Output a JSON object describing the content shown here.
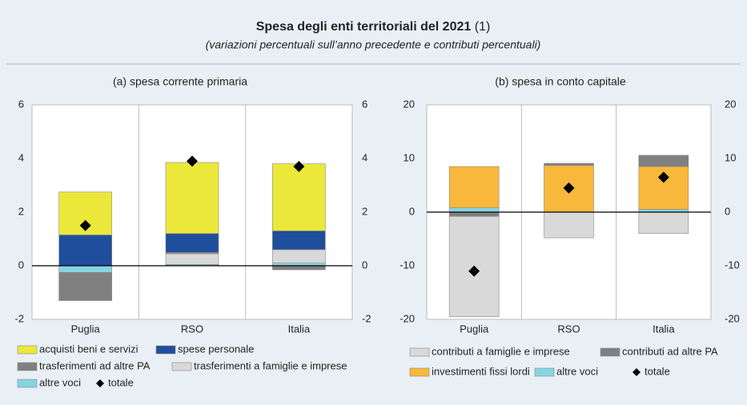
{
  "header": {
    "title": "Spesa degli enti territoriali del 2021",
    "title_note": "(1)",
    "subtitle": "(variazioni percentuali sull’anno precedente e contributi percentuali)"
  },
  "chart_data": [
    {
      "type": "bar",
      "stacked": true,
      "title": "(a) spesa corrente primaria",
      "categories": [
        "Puglia",
        "RSO",
        "Italia"
      ],
      "ylim": [
        -2,
        6
      ],
      "yticks": [
        -2,
        0,
        2,
        4,
        6
      ],
      "y2lim": [
        -2,
        6
      ],
      "y2ticks": [
        -2,
        0,
        2,
        4,
        6
      ],
      "series": [
        {
          "name": "altre voci",
          "color": "#86d4e2",
          "values": [
            -0.25,
            0.05,
            0.1
          ]
        },
        {
          "name": "trasferimenti a famiglie e imprese",
          "color": "#d9d9d9",
          "values": [
            0,
            0.4,
            0.5
          ]
        },
        {
          "name": "trasferimenti ad altre PA",
          "color": "#808080",
          "values": [
            -1.05,
            0.05,
            -0.15
          ]
        },
        {
          "name": "spese personale",
          "color": "#1f4e9c",
          "values": [
            1.15,
            0.7,
            0.7
          ]
        },
        {
          "name": "acquisti beni e servizi",
          "color": "#ece83a",
          "values": [
            1.6,
            2.65,
            2.5
          ]
        }
      ],
      "total": {
        "name": "totale",
        "color": "#000000",
        "values": [
          1.5,
          3.9,
          3.7
        ]
      }
    },
    {
      "type": "bar",
      "stacked": true,
      "title": "(b) spesa in conto capitale",
      "categories": [
        "Puglia",
        "RSO",
        "Italia"
      ],
      "ylim": [
        -20,
        20
      ],
      "yticks": [
        -20,
        -10,
        0,
        10,
        20
      ],
      "y2lim": [
        -20,
        20
      ],
      "y2ticks": [
        -20,
        -10,
        0,
        10,
        20
      ],
      "series": [
        {
          "name": "altre voci",
          "color": "#86d4e2",
          "values": [
            0.8,
            0,
            0.5
          ]
        },
        {
          "name": "investimenti fissi lordi",
          "color": "#f8b83c",
          "values": [
            7.7,
            8.7,
            8
          ]
        },
        {
          "name": "contributi ad altre PA",
          "color": "#808080",
          "values": [
            -0.8,
            0.4,
            2.1
          ]
        },
        {
          "name": "contributi a famiglie e imprese",
          "color": "#d9d9d9",
          "values": [
            -18.7,
            -4.8,
            -4
          ]
        }
      ],
      "total": {
        "name": "totale",
        "color": "#000000",
        "values": [
          -11,
          4.5,
          6.5
        ]
      }
    }
  ]
}
